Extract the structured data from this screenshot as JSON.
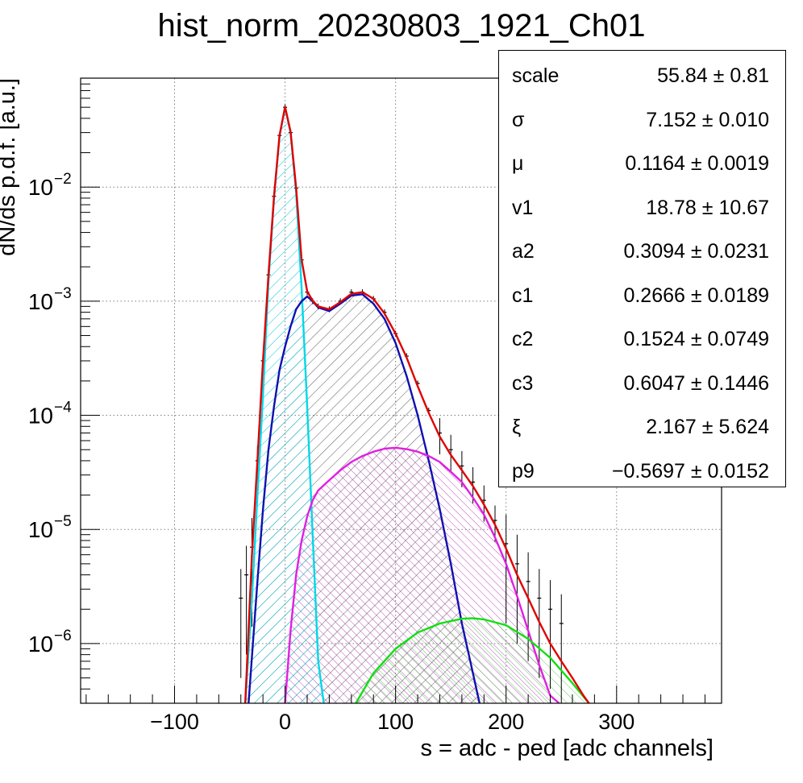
{
  "chart_data": {
    "type": "line",
    "title": "hist_norm_20230803_1921_Ch01",
    "xlabel": "s = adc - ped [adc channels]",
    "ylabel": "dN/ds p.d.f. [a.u.]",
    "xlim": [
      -185,
      395
    ],
    "ylim": [
      3e-07,
      0.09
    ],
    "yscale": "log",
    "grid": true,
    "x_ticks": [
      -100,
      0,
      100,
      200,
      300
    ],
    "x_tick_labels": [
      "−100",
      "0",
      "100",
      "200",
      "300"
    ],
    "y_ticks": [
      1e-06,
      1e-05,
      0.0001,
      0.001,
      0.01
    ],
    "y_tick_labels": [
      {
        "base": "10",
        "exp": "−6"
      },
      {
        "base": "10",
        "exp": "−5"
      },
      {
        "base": "10",
        "exp": "−4"
      },
      {
        "base": "10",
        "exp": "−3"
      },
      {
        "base": "10",
        "exp": "−2"
      }
    ],
    "colors": {
      "data": "#000000",
      "total_fit": "#e00000",
      "pedestal": "#00d8e8",
      "one_pe": "#1010b0",
      "two_pe": "#e020e0",
      "three_pe": "#10e010",
      "grid": "#808080"
    },
    "series": [
      {
        "key": "pedestal",
        "x": [
          -36,
          -30,
          -25,
          -20,
          -15,
          -10,
          -5,
          0,
          5,
          10,
          15,
          20,
          25,
          30,
          35
        ],
        "y": [
          3e-07,
          2.5e-06,
          2e-05,
          0.00015,
          0.0015,
          0.008,
          0.028,
          0.05,
          0.03,
          0.009,
          0.0013,
          0.00012,
          9e-06,
          7e-07,
          3e-07
        ]
      },
      {
        "key": "one_pe",
        "x": [
          -33,
          -25,
          -20,
          -15,
          -10,
          -5,
          0,
          5,
          10,
          15,
          20,
          25,
          30,
          40,
          50,
          60,
          70,
          80,
          90,
          100,
          110,
          120,
          130,
          140,
          150,
          160,
          170,
          176
        ],
        "y": [
          3e-07,
          3.5e-06,
          1.5e-05,
          5e-05,
          0.00012,
          0.00025,
          0.0004,
          0.0006,
          0.00085,
          0.001,
          0.0011,
          0.001,
          0.00088,
          0.00082,
          0.00095,
          0.00112,
          0.00115,
          0.00095,
          0.0007,
          0.00043,
          0.00022,
          0.0001,
          4e-05,
          1.5e-05,
          5e-06,
          1.5e-06,
          5.5e-07,
          3e-07
        ]
      },
      {
        "key": "two_pe",
        "x": [
          0,
          5,
          10,
          15,
          20,
          25,
          30,
          40,
          50,
          60,
          70,
          80,
          90,
          100,
          110,
          120,
          130,
          140,
          150,
          160,
          170,
          180,
          190,
          200,
          210,
          220,
          230,
          240,
          248
        ],
        "y": [
          3e-07,
          1.3e-06,
          4e-06,
          8e-06,
          1.3e-05,
          1.8e-05,
          2.2e-05,
          2.7e-05,
          3.3e-05,
          3.9e-05,
          4.4e-05,
          4.8e-05,
          5.1e-05,
          5.2e-05,
          5.05e-05,
          4.8e-05,
          4.4e-05,
          3.9e-05,
          3.2e-05,
          2.6e-05,
          1.9e-05,
          1.35e-05,
          8.5e-06,
          5e-06,
          2.6e-06,
          1.3e-06,
          6.5e-07,
          3.5e-07,
          3e-07
        ]
      },
      {
        "key": "three_pe",
        "x": [
          64,
          80,
          100,
          120,
          140,
          160,
          170,
          180,
          200,
          220,
          240,
          260,
          275
        ],
        "y": [
          3e-07,
          5.5e-07,
          9e-07,
          1.25e-06,
          1.5e-06,
          1.65e-06,
          1.67e-06,
          1.63e-06,
          1.45e-06,
          1.1e-06,
          7.5e-07,
          4.5e-07,
          3e-07
        ]
      },
      {
        "key": "total_fit",
        "x": [
          -36,
          -30,
          -25,
          -20,
          -15,
          -10,
          -5,
          0,
          5,
          10,
          15,
          20,
          25,
          30,
          40,
          50,
          60,
          70,
          80,
          90,
          100,
          110,
          120,
          130,
          140,
          150,
          160,
          170,
          180,
          190,
          200,
          210,
          220,
          230,
          240,
          250,
          260,
          270,
          275
        ],
        "y": [
          3e-07,
          6e-06,
          4e-05,
          0.0003,
          0.0017,
          0.0083,
          0.0283,
          0.0504,
          0.0306,
          0.0098,
          0.0023,
          0.00122,
          0.00101,
          0.0009,
          0.00085,
          0.00098,
          0.00116,
          0.0012,
          0.00105,
          0.00078,
          0.00052,
          0.00032,
          0.00018,
          0.000105,
          6.5e-05,
          4.5e-05,
          3.3e-05,
          2.4e-05,
          1.65e-05,
          1.1e-05,
          6.8e-06,
          4e-06,
          2.5e-06,
          1.55e-06,
          1e-06,
          7e-07,
          5e-07,
          3.5e-07,
          3e-07
        ]
      },
      {
        "key": "data",
        "x": [
          -40,
          -35,
          -30,
          -25,
          -20,
          -15,
          -10,
          -5,
          0,
          5,
          10,
          15,
          20,
          25,
          30,
          40,
          50,
          60,
          70,
          80,
          90,
          100,
          110,
          120,
          130,
          140,
          150,
          160,
          170,
          180,
          190,
          200,
          210,
          220,
          230,
          240,
          250
        ],
        "y": [
          2.5e-06,
          4e-06,
          7e-06,
          4e-05,
          0.0003,
          0.0017,
          0.0083,
          0.0283,
          0.05,
          0.03,
          0.0098,
          0.0023,
          0.0012,
          0.001,
          0.0009,
          0.00085,
          0.001,
          0.0012,
          0.0012,
          0.00105,
          0.0008,
          0.00052,
          0.00033,
          0.00019,
          0.00011,
          7e-05,
          5e-05,
          3.6e-05,
          2.6e-05,
          1.8e-05,
          1.2e-05,
          7.5e-06,
          5e-06,
          3.5e-06,
          2.5e-06,
          2e-06,
          1.5e-06
        ]
      }
    ]
  },
  "stats_box": {
    "rows": [
      {
        "name": "scale",
        "value": "55.84 ± 0.81"
      },
      {
        "name": "σ",
        "value": "7.152 ± 0.010"
      },
      {
        "name": "μ",
        "value": "0.1164  ± 0.0019"
      },
      {
        "name": "v1",
        "value": "18.78 ± 10.67"
      },
      {
        "name": "a2",
        "value": "0.3094  ± 0.0231"
      },
      {
        "name": "c1",
        "value": "0.2666  ± 0.0189"
      },
      {
        "name": "c2",
        "value": "0.1524  ± 0.0749"
      },
      {
        "name": "c3",
        "value": "0.6047  ± 0.1446"
      },
      {
        "name": "ξ",
        "value": "2.167 ± 5.624"
      },
      {
        "name": "p9",
        "value": "−0.5697  ± 0.0152"
      }
    ]
  }
}
